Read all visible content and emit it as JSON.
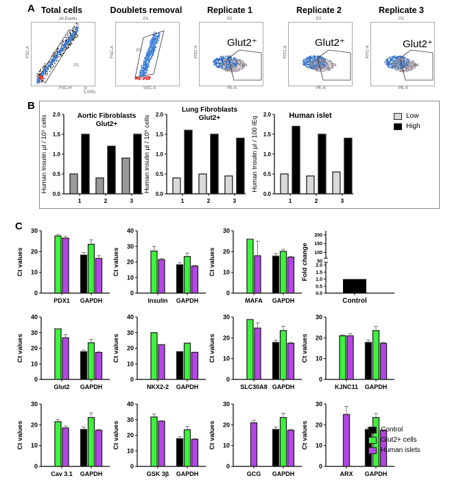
{
  "panels": {
    "a": "A",
    "b": "B",
    "c": "C"
  },
  "panel_a": {
    "plots": [
      {
        "title": "Total cells",
        "gate_top": "All Events",
        "gate": "P1",
        "xlabel": "FSC-H",
        "ylabel": "FSC-A",
        "scale": "(x 1,000)",
        "glut": ""
      },
      {
        "title": "Doublets removal",
        "gate_top": "P1",
        "gate": "P2",
        "xlabel": "SSC-A",
        "ylabel": "FSC-A",
        "scale": "",
        "glut": ""
      },
      {
        "title": "Replicate 1",
        "gate_top": "P2",
        "gate": "P4",
        "xlabel": "PE-A",
        "ylabel": "FITC-A",
        "scale": "",
        "glut": "Glut2⁺"
      },
      {
        "title": "Replicate 2",
        "gate_top": "P2",
        "gate": "P4",
        "xlabel": "PE-A",
        "ylabel": "FITC-A",
        "scale": "",
        "glut": "Glut2⁺"
      },
      {
        "title": "Replicate 3",
        "gate_top": "P2",
        "gate": "P4",
        "xlabel": "PE-A",
        "ylabel": "FITC-A",
        "scale": "",
        "glut": "Glut2⁺"
      }
    ]
  },
  "legend_b": [
    {
      "label": "Low",
      "color": "#d9d9d9"
    },
    {
      "label": "High",
      "color": "#000000"
    }
  ],
  "legend_c": [
    {
      "label": "Control",
      "color": "#000000"
    },
    {
      "label": "Glut2+ cells",
      "color": "#3ef23e"
    },
    {
      "label": "Human islets",
      "color": "#b445e6"
    }
  ],
  "chart_data": [
    {
      "panel": "B",
      "type": "bar",
      "title": "Aortic Fibroblasts\nGlut2+",
      "ylabel": "Human Insulin µl / 10⁵ cells",
      "categories": [
        "1",
        "2",
        "3"
      ],
      "ylim": [
        0,
        2.0
      ],
      "yticks": [
        "0.0",
        "0.5",
        "1.0",
        "1.5",
        "2.0"
      ],
      "series": [
        {
          "name": "Low",
          "color": "#9a9a9a",
          "values": [
            0.5,
            0.4,
            0.9
          ]
        },
        {
          "name": "High",
          "color": "#000000",
          "values": [
            1.5,
            1.2,
            1.5
          ]
        }
      ]
    },
    {
      "panel": "B",
      "type": "bar",
      "title": "Lung Fibroblasts\nGlut2+",
      "ylabel": "Human insulin µl / 10⁵ cells",
      "categories": [
        "1",
        "2",
        "3"
      ],
      "ylim": [
        0,
        2.0
      ],
      "yticks": [
        "0.0",
        "0.5",
        "1.0",
        "1.5",
        "2.0"
      ],
      "series": [
        {
          "name": "Low",
          "color": "#d9d9d9",
          "values": [
            0.4,
            0.5,
            0.45
          ]
        },
        {
          "name": "High",
          "color": "#000000",
          "values": [
            1.6,
            1.5,
            1.4
          ]
        }
      ]
    },
    {
      "panel": "B",
      "type": "bar",
      "title": "Human islet",
      "ylabel": "Human Insulin µl / 100 IEq",
      "categories": [
        "1",
        "2",
        "3"
      ],
      "ylim": [
        0,
        2.0
      ],
      "yticks": [
        "0.0",
        "0.5",
        "1.0",
        "1.5",
        "2.0"
      ],
      "series": [
        {
          "name": "Low",
          "color": "#d9d9d9",
          "values": [
            0.5,
            0.45,
            0.55
          ]
        },
        {
          "name": "High",
          "color": "#000000",
          "values": [
            1.7,
            1.5,
            1.4
          ]
        }
      ]
    },
    {
      "panel": "C",
      "type": "bar",
      "ylabel": "Ct values",
      "categories": [
        "PDX1",
        "GAPDH"
      ],
      "ylim": [
        0,
        30
      ],
      "yticks": [
        "0",
        "10",
        "20",
        "30"
      ],
      "series": [
        {
          "name": "Control",
          "values": [
            null,
            18.3
          ],
          "err": [
            null,
            1.3
          ]
        },
        {
          "name": "Glut2+ cells",
          "values": [
            27.5,
            23.5
          ],
          "err": [
            0.7,
            2.2
          ]
        },
        {
          "name": "Human islets",
          "values": [
            26.5,
            16.7
          ],
          "err": [
            0.8,
            1.4
          ]
        }
      ]
    },
    {
      "panel": "C",
      "type": "bar",
      "ylabel": "Ct values",
      "categories": [
        "Insulin",
        "GAPDH"
      ],
      "ylim": [
        0,
        40
      ],
      "yticks": [
        "0",
        "10",
        "20",
        "30",
        "40"
      ],
      "series": [
        {
          "name": "Control",
          "values": [
            null,
            18.2
          ],
          "err": [
            null,
            1.3
          ]
        },
        {
          "name": "Glut2+ cells",
          "values": [
            27,
            23.5
          ],
          "err": [
            3,
            2.2
          ]
        },
        {
          "name": "Human islets",
          "values": [
            21.5,
            17.3
          ],
          "err": [
            0.8,
            0.5
          ]
        }
      ]
    },
    {
      "panel": "C",
      "type": "bar",
      "ylabel": "Ct values",
      "categories": [
        "MAFA",
        "GAPDH"
      ],
      "ylim": [
        0,
        30
      ],
      "yticks": [
        "0",
        "10",
        "20",
        "30"
      ],
      "series": [
        {
          "name": "Control",
          "values": [
            null,
            17.8
          ],
          "err": [
            null,
            1.2
          ]
        },
        {
          "name": "Glut2+ cells",
          "values": [
            26,
            20.1
          ],
          "err": [
            0.1,
            1
          ]
        },
        {
          "name": "Human islets",
          "values": [
            18,
            17.3
          ],
          "err": [
            7,
            0.4
          ]
        }
      ]
    },
    {
      "panel": "C",
      "type": "bar",
      "ylabel": "Fold change",
      "categories": [
        "Control"
      ],
      "broken_axis": true,
      "ylim": [
        0,
        200
      ],
      "yticks": [
        "0.0",
        "0.5",
        "1.0",
        "1.5",
        "2.0",
        "50",
        "100",
        "150",
        "200"
      ],
      "series": [
        {
          "name": "Control",
          "values": [
            1.0
          ]
        }
      ]
    },
    {
      "panel": "C",
      "type": "bar",
      "ylabel": "Ct values",
      "categories": [
        "Glut2",
        "GAPDH"
      ],
      "ylim": [
        0,
        40
      ],
      "yticks": [
        "0",
        "10",
        "20",
        "30",
        "40"
      ],
      "series": [
        {
          "name": "Control",
          "values": [
            null,
            17.8
          ],
          "err": [
            null,
            1
          ]
        },
        {
          "name": "Glut2+ cells",
          "values": [
            32.5,
            23.5
          ],
          "err": [
            0.1,
            2.2
          ]
        },
        {
          "name": "Human islets",
          "values": [
            26.7,
            17.3
          ],
          "err": [
            2,
            0.4
          ]
        }
      ]
    },
    {
      "panel": "C",
      "type": "bar",
      "ylabel": "Ct values",
      "categories": [
        "NKX2-2",
        "GAPDH"
      ],
      "ylim": [
        0,
        40
      ],
      "yticks": [
        "0",
        "10",
        "20",
        "30",
        "40"
      ],
      "series": [
        {
          "name": "Control",
          "values": [
            null,
            17.8
          ],
          "err": [
            null,
            0
          ]
        },
        {
          "name": "Glut2+ cells",
          "values": [
            30,
            23.3
          ],
          "err": [
            0,
            0
          ]
        },
        {
          "name": "Human islets",
          "values": [
            22.3,
            17.4
          ],
          "err": [
            0,
            0
          ]
        }
      ]
    },
    {
      "panel": "C",
      "type": "bar",
      "ylabel": "Ct values",
      "categories": [
        "SLC30A8",
        "GAPDH"
      ],
      "ylim": [
        0,
        30
      ],
      "yticks": [
        "0",
        "10",
        "20",
        "30"
      ],
      "series": [
        {
          "name": "Control",
          "values": [
            null,
            17.8
          ],
          "err": [
            null,
            1.1
          ]
        },
        {
          "name": "Glut2+ cells",
          "values": [
            28.8,
            23.5
          ],
          "err": [
            0.2,
            2.1
          ]
        },
        {
          "name": "Human islets",
          "values": [
            24.7,
            17.4
          ],
          "err": [
            2.5,
            0.4
          ]
        }
      ]
    },
    {
      "panel": "C",
      "type": "bar",
      "ylabel": "Ct values",
      "categories": [
        "KJNC11",
        "GAPDH"
      ],
      "ylim": [
        0,
        30
      ],
      "yticks": [
        "0",
        "10",
        "20",
        "30"
      ],
      "series": [
        {
          "name": "Control",
          "values": [
            null,
            17.8
          ],
          "err": [
            null,
            1.1
          ]
        },
        {
          "name": "Glut2+ cells",
          "values": [
            21,
            23.5
          ],
          "err": [
            0.4,
            2.1
          ]
        },
        {
          "name": "Human islets",
          "values": [
            21,
            17.4
          ],
          "err": [
            1.1,
            0.4
          ]
        }
      ]
    },
    {
      "panel": "C",
      "type": "bar",
      "ylabel": "Ct values",
      "categories": [
        "Cav 3.1",
        "GAPDH"
      ],
      "ylim": [
        0,
        30
      ],
      "yticks": [
        "0",
        "10",
        "20",
        "30"
      ],
      "series": [
        {
          "name": "Control",
          "values": [
            null,
            17.8
          ],
          "err": [
            null,
            1.2
          ]
        },
        {
          "name": "Glut2+ cells",
          "values": [
            21.5,
            23.5
          ],
          "err": [
            1.1,
            2.2
          ]
        },
        {
          "name": "Human islets",
          "values": [
            18.5,
            17.4
          ],
          "err": [
            0.9,
            0.4
          ]
        }
      ]
    },
    {
      "panel": "C",
      "type": "bar",
      "ylabel": "Ct values",
      "categories": [
        "GSK 3β",
        "GAPDH"
      ],
      "ylim": [
        0,
        40
      ],
      "yticks": [
        "0",
        "10",
        "20",
        "30",
        "40"
      ],
      "series": [
        {
          "name": "Control",
          "values": [
            null,
            17.8
          ],
          "err": [
            null,
            1.2
          ]
        },
        {
          "name": "Glut2+ cells",
          "values": [
            31.7,
            23.5
          ],
          "err": [
            2,
            2.1
          ]
        },
        {
          "name": "Human islets",
          "values": [
            29,
            17.4
          ],
          "err": [
            0.4,
            0.4
          ]
        }
      ]
    },
    {
      "panel": "C",
      "type": "bar",
      "ylabel": "Ct values",
      "categories": [
        "GCG",
        "GAPDH"
      ],
      "ylim": [
        0,
        30
      ],
      "yticks": [
        "0",
        "10",
        "20",
        "30"
      ],
      "series": [
        {
          "name": "Control",
          "values": [
            null,
            17.8
          ],
          "err": [
            null,
            1.2
          ]
        },
        {
          "name": "Glut2+ cells",
          "values": [
            null,
            23.5
          ],
          "err": [
            null,
            2.1
          ]
        },
        {
          "name": "Human islets",
          "values": [
            21,
            17.4
          ],
          "err": [
            1.2,
            0.4
          ]
        }
      ]
    },
    {
      "panel": "C",
      "type": "bar",
      "ylabel": "Ct values",
      "categories": [
        "ARX",
        "GAPDH"
      ],
      "ylim": [
        0,
        30
      ],
      "yticks": [
        "0",
        "10",
        "20",
        "30"
      ],
      "series": [
        {
          "name": "Control",
          "values": [
            null,
            17.8
          ],
          "err": [
            null,
            1
          ]
        },
        {
          "name": "Glut2+ cells",
          "values": [
            null,
            23.5
          ],
          "err": [
            null,
            2
          ]
        },
        {
          "name": "Human islets",
          "values": [
            25,
            17.4
          ],
          "err": [
            3.8,
            0.3
          ]
        }
      ]
    }
  ]
}
